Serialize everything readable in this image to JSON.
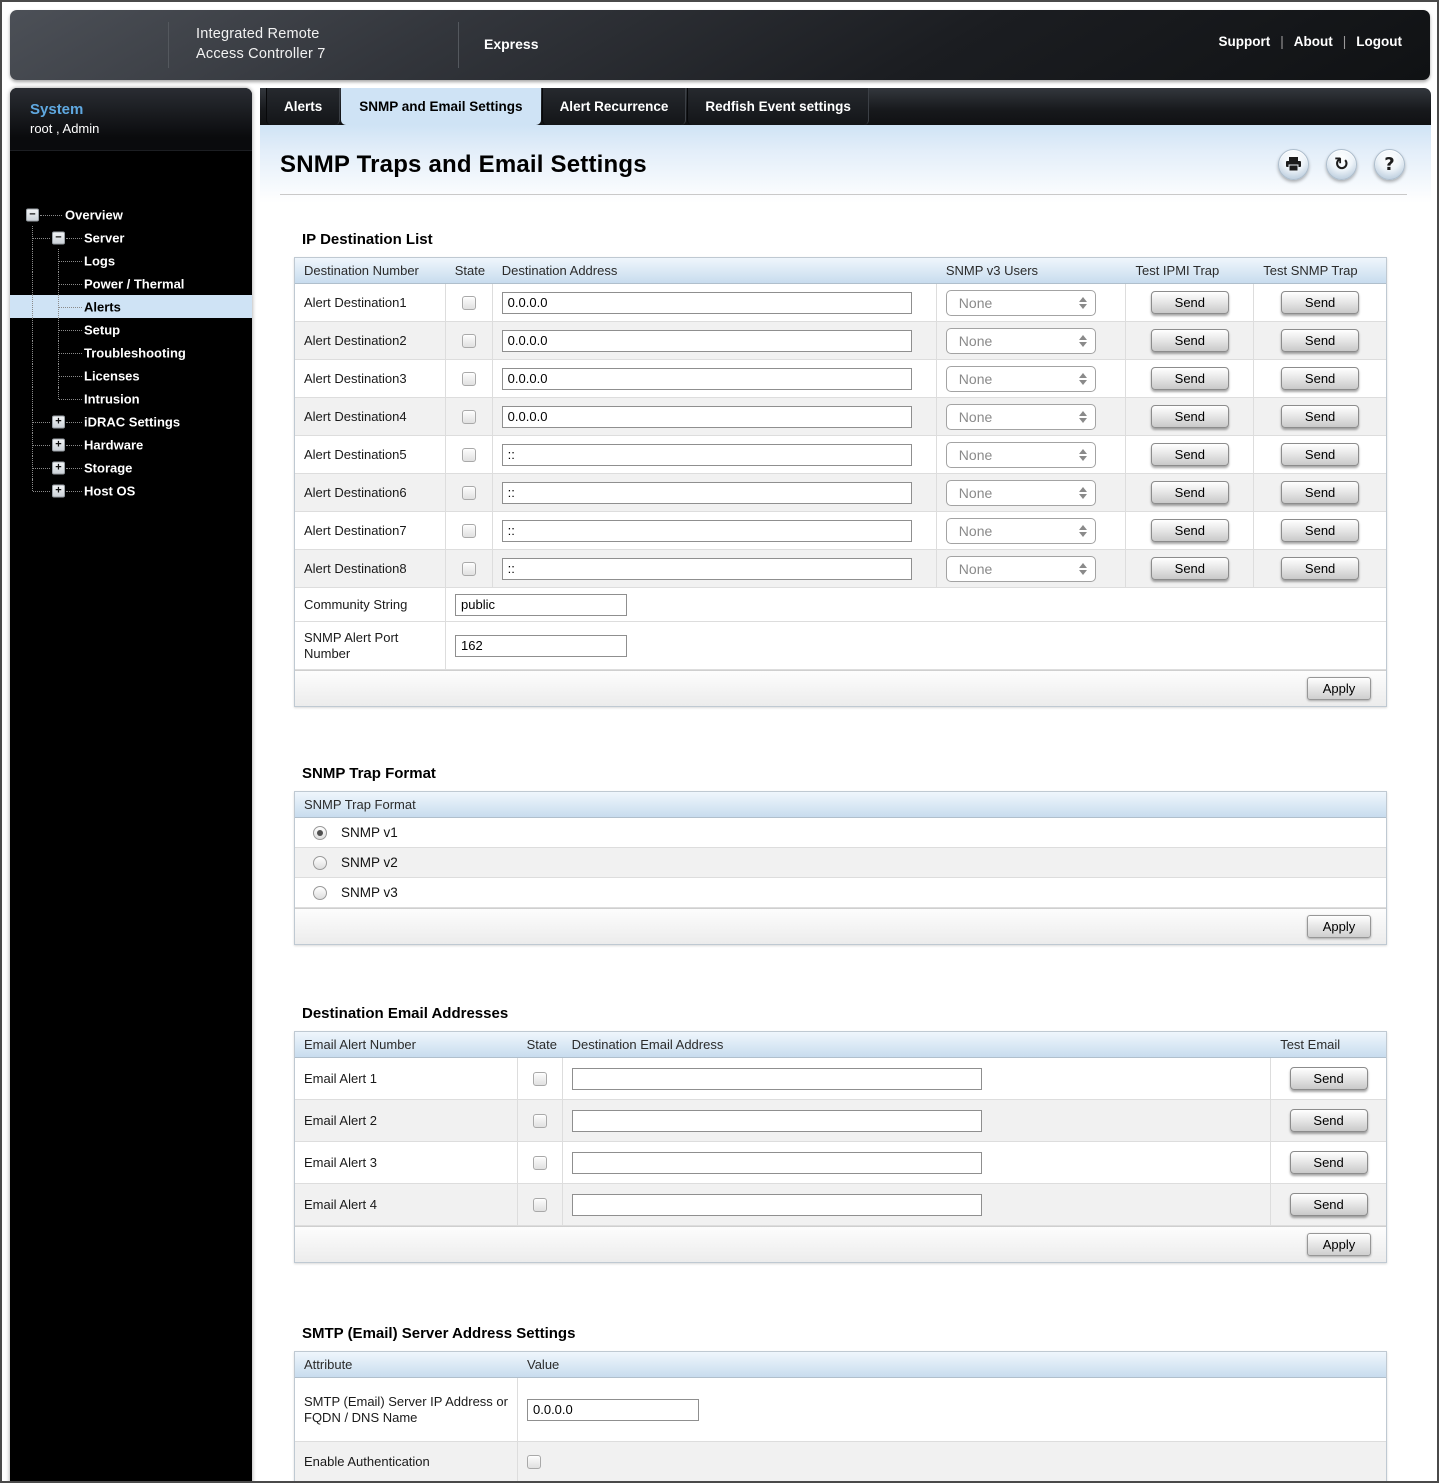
{
  "header": {
    "brand_line1": "Integrated Remote",
    "brand_line2": "Access Controller 7",
    "edition": "Express",
    "links": [
      "Support",
      "About",
      "Logout"
    ]
  },
  "sidebar": {
    "system_title": "System",
    "system_user": "root , Admin",
    "tree": [
      {
        "label": "Overview",
        "level": 0,
        "box": "minus",
        "selected": false
      },
      {
        "label": "Server",
        "level": 1,
        "box": "minus",
        "selected": false
      },
      {
        "label": "Logs",
        "level": 2,
        "box": null,
        "selected": false
      },
      {
        "label": "Power / Thermal",
        "level": 2,
        "box": null,
        "selected": false
      },
      {
        "label": "Alerts",
        "level": 2,
        "box": null,
        "selected": true
      },
      {
        "label": "Setup",
        "level": 2,
        "box": null,
        "selected": false
      },
      {
        "label": "Troubleshooting",
        "level": 2,
        "box": null,
        "selected": false
      },
      {
        "label": "Licenses",
        "level": 2,
        "box": null,
        "selected": false
      },
      {
        "label": "Intrusion",
        "level": 2,
        "box": null,
        "selected": false
      },
      {
        "label": "iDRAC Settings",
        "level": 1,
        "box": "plus",
        "selected": false
      },
      {
        "label": "Hardware",
        "level": 1,
        "box": "plus",
        "selected": false
      },
      {
        "label": "Storage",
        "level": 1,
        "box": "plus",
        "selected": false
      },
      {
        "label": "Host OS",
        "level": 1,
        "box": "plus",
        "selected": false
      }
    ]
  },
  "tabs": [
    {
      "label": "Alerts",
      "active": false
    },
    {
      "label": "SNMP and Email Settings",
      "active": true
    },
    {
      "label": "Alert Recurrence",
      "active": false
    },
    {
      "label": "Redfish Event settings",
      "active": false
    }
  ],
  "page": {
    "title": "SNMP Traps and Email Settings",
    "icons": [
      "printer-icon",
      "refresh-icon",
      "help-icon"
    ]
  },
  "ip_destination": {
    "heading": "IP Destination List",
    "columns": [
      "Destination Number",
      "State",
      "Destination Address",
      "SNMP v3 Users",
      "Test IPMI Trap",
      "Test SNMP Trap"
    ],
    "rows": [
      {
        "label": "Alert Destination1",
        "state": false,
        "address": "0.0.0.0",
        "snmp_v3_user": "None",
        "ipmi_send": "Send",
        "snmp_send": "Send"
      },
      {
        "label": "Alert Destination2",
        "state": false,
        "address": "0.0.0.0",
        "snmp_v3_user": "None",
        "ipmi_send": "Send",
        "snmp_send": "Send"
      },
      {
        "label": "Alert Destination3",
        "state": false,
        "address": "0.0.0.0",
        "snmp_v3_user": "None",
        "ipmi_send": "Send",
        "snmp_send": "Send"
      },
      {
        "label": "Alert Destination4",
        "state": false,
        "address": "0.0.0.0",
        "snmp_v3_user": "None",
        "ipmi_send": "Send",
        "snmp_send": "Send"
      },
      {
        "label": "Alert Destination5",
        "state": false,
        "address": "::",
        "snmp_v3_user": "None",
        "ipmi_send": "Send",
        "snmp_send": "Send"
      },
      {
        "label": "Alert Destination6",
        "state": false,
        "address": "::",
        "snmp_v3_user": "None",
        "ipmi_send": "Send",
        "snmp_send": "Send"
      },
      {
        "label": "Alert Destination7",
        "state": false,
        "address": "::",
        "snmp_v3_user": "None",
        "ipmi_send": "Send",
        "snmp_send": "Send"
      },
      {
        "label": "Alert Destination8",
        "state": false,
        "address": "::",
        "snmp_v3_user": "None",
        "ipmi_send": "Send",
        "snmp_send": "Send"
      }
    ],
    "community_string": {
      "label": "Community String",
      "value": "public"
    },
    "alert_port": {
      "label": "SNMP Alert Port Number",
      "value": "162"
    },
    "apply_label": "Apply"
  },
  "trap_format": {
    "heading": "SNMP Trap Format",
    "table_header": "SNMP Trap Format",
    "options": [
      {
        "label": "SNMP v1",
        "selected": true
      },
      {
        "label": "SNMP v2",
        "selected": false
      },
      {
        "label": "SNMP v3",
        "selected": false
      }
    ],
    "apply_label": "Apply"
  },
  "email_addresses": {
    "heading": "Destination Email Addresses",
    "columns": [
      "Email Alert Number",
      "State",
      "Destination Email Address",
      "Test Email"
    ],
    "rows": [
      {
        "label": "Email Alert 1",
        "state": false,
        "address": "",
        "send": "Send"
      },
      {
        "label": "Email Alert 2",
        "state": false,
        "address": "",
        "send": "Send"
      },
      {
        "label": "Email Alert 3",
        "state": false,
        "address": "",
        "send": "Send"
      },
      {
        "label": "Email Alert 4",
        "state": false,
        "address": "",
        "send": "Send"
      }
    ],
    "apply_label": "Apply"
  },
  "smtp": {
    "heading": "SMTP (Email) Server Address Settings",
    "columns": [
      "Attribute",
      "Value"
    ],
    "rows": [
      {
        "label": "SMTP (Email) Server IP Address or FQDN / DNS Name",
        "type": "input",
        "value": "0.0.0.0"
      },
      {
        "label": "Enable Authentication",
        "type": "checkbox",
        "checked": false
      }
    ]
  }
}
